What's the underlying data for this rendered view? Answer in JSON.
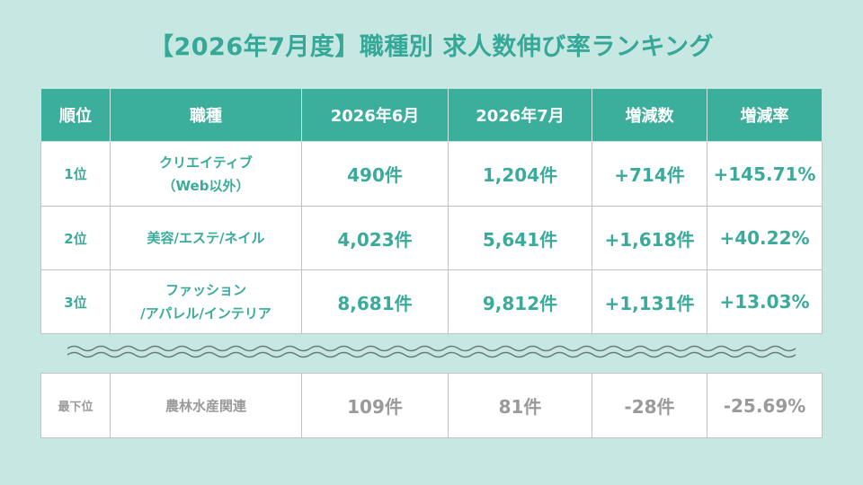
{
  "title": "【2026年7月度】職種別 求人数伸び率ランキング",
  "headers": [
    "順位",
    "職種",
    "2026年6月",
    "2026年7月",
    "増減数",
    "増減率"
  ],
  "rows": [
    {
      "rank": "1位",
      "job_line1": "クリエイティブ",
      "job_line2": "（Web以外）",
      "june": "490件",
      "july": "1,204件",
      "change": "+714件",
      "rate": "+145.71%"
    },
    {
      "rank": "2位",
      "job_line1": "美容/エステ/ネイル",
      "job_line2": "",
      "june": "4,023件",
      "july": "5,641件",
      "change": "+1,618件",
      "rate": "+40.22%"
    },
    {
      "rank": "3位",
      "job_line1": "ファッション",
      "job_line2": "/アパレル/インテリア",
      "june": "8,681件",
      "july": "9,812件",
      "change": "+1,131件",
      "rate": "+13.03%"
    }
  ],
  "bottom": {
    "rank": "最下位",
    "job": "農林水産関連",
    "june": "109件",
    "july": "81件",
    "change": "-28件",
    "rate": "-25.69%"
  },
  "colors": {
    "background": "#c7e7e3",
    "accent": "#3cae9c",
    "text_accent": "#3aab9a",
    "muted": "#9a9a9a"
  }
}
